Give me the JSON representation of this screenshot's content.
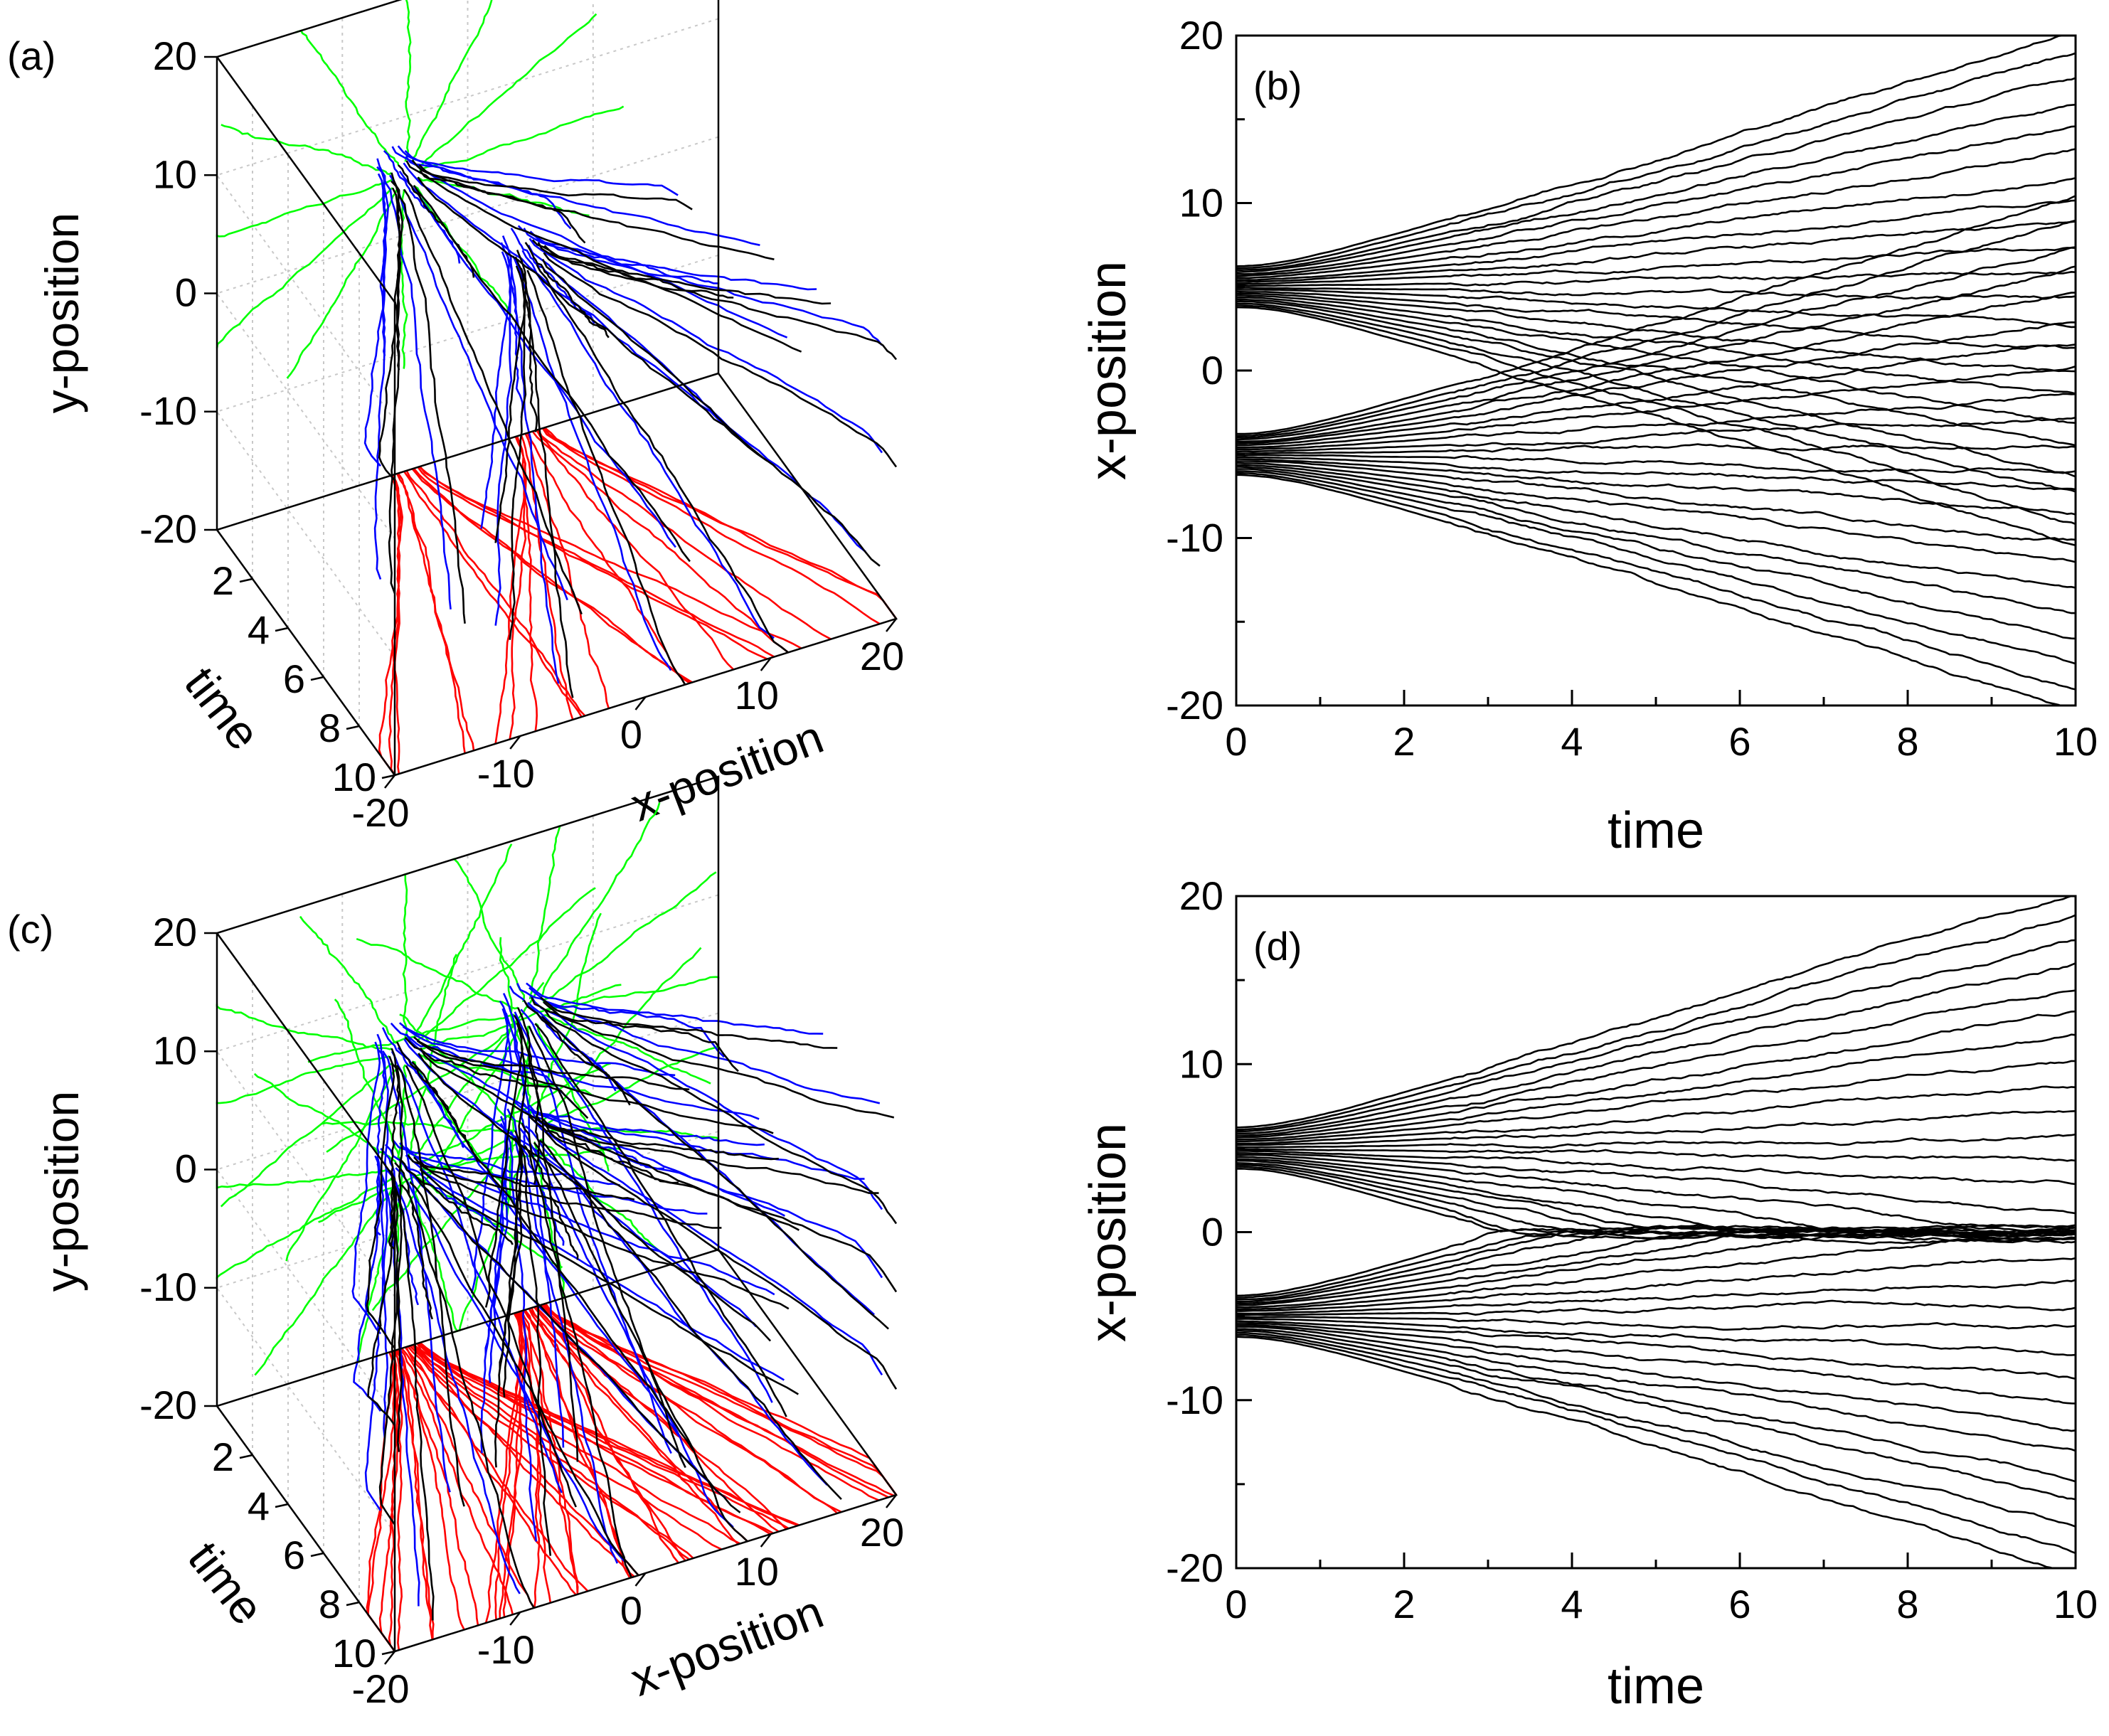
{
  "colors": {
    "black": "#000000",
    "blue": "#0000ff",
    "green": "#00ff00",
    "red": "#ff0000",
    "grid": "#c8c8c8"
  },
  "chart_data": [
    {
      "panel": "(a)",
      "type": "line",
      "projection": "3d",
      "xlabel": "x-position",
      "ylabel": "y-position",
      "zlabel": "time",
      "x_ticks": [
        "-20",
        "-10",
        "0",
        "10",
        "20"
      ],
      "y_ticks": [
        "-20",
        "-10",
        "0",
        "10",
        "20"
      ],
      "time_ticks": [
        "2",
        "4",
        "6",
        "8",
        "10"
      ],
      "xlim": [
        -20,
        20
      ],
      "ylim": [
        -20,
        20
      ],
      "tlim": [
        0,
        10
      ],
      "grid": true,
      "sources": [
        {
          "x": -5,
          "y": 5
        },
        {
          "x": 5,
          "y": -5
        }
      ],
      "trajectories_per_source": 12,
      "spread": 2.0,
      "projections": {
        "black": "3d trajectories",
        "blue": "time vs y wall",
        "green": "x vs y wall",
        "red": "time vs x floor"
      }
    },
    {
      "panel": "(b)",
      "type": "line",
      "xlabel": "time",
      "ylabel": "x-position",
      "x_ticks": [
        "0",
        "2",
        "4",
        "6",
        "8",
        "10"
      ],
      "y_ticks": [
        "-20",
        "-10",
        "0",
        "10",
        "20"
      ],
      "xlim": [
        0,
        10
      ],
      "ylim": [
        -20,
        20
      ],
      "sources": [
        5,
        -5
      ],
      "trajectories_per_source": 22,
      "final_spread": 15,
      "behaviour": "crossing"
    },
    {
      "panel": "(c)",
      "type": "line",
      "projection": "3d",
      "xlabel": "x-position",
      "ylabel": "y-position",
      "zlabel": "time",
      "x_ticks": [
        "-20",
        "-10",
        "0",
        "10",
        "20"
      ],
      "y_ticks": [
        "-20",
        "-10",
        "0",
        "10",
        "20"
      ],
      "time_ticks": [
        "2",
        "4",
        "6",
        "8",
        "10"
      ],
      "xlim": [
        -20,
        20
      ],
      "ylim": [
        -20,
        20
      ],
      "tlim": [
        0,
        10
      ],
      "grid": true,
      "sources": [
        {
          "x": -5,
          "y": 5
        },
        {
          "x": 5,
          "y": 5
        },
        {
          "x": -5,
          "y": -5
        },
        {
          "x": 5,
          "y": -5
        }
      ],
      "trajectories_per_source": 12,
      "spread": 2.0,
      "projections": {
        "black": "3d trajectories",
        "blue": "time vs y wall",
        "green": "x vs y wall",
        "red": "time vs x floor"
      }
    },
    {
      "panel": "(d)",
      "type": "line",
      "xlabel": "time",
      "ylabel": "x-position",
      "x_ticks": [
        "0",
        "2",
        "4",
        "6",
        "8",
        "10"
      ],
      "y_ticks": [
        "-20",
        "-10",
        "0",
        "10",
        "20"
      ],
      "xlim": [
        0,
        10
      ],
      "ylim": [
        -20,
        20
      ],
      "sources": [
        5,
        -5
      ],
      "trajectories_per_source": 22,
      "final_spread": 15,
      "behaviour": "non-crossing, accumulating near 0"
    }
  ]
}
